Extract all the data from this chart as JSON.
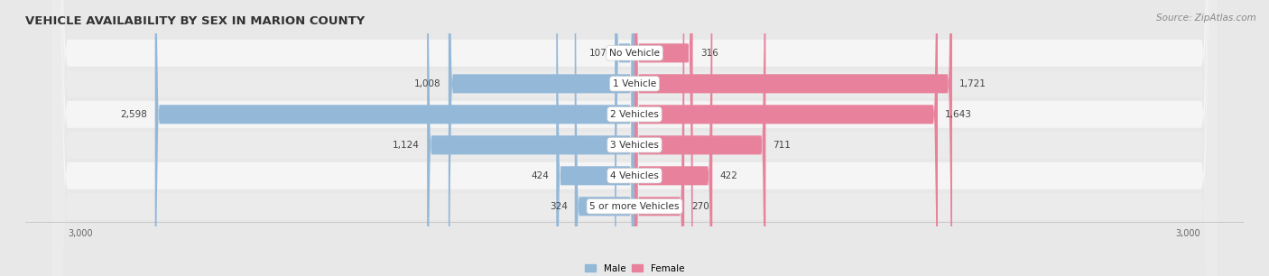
{
  "title": "VEHICLE AVAILABILITY BY SEX IN MARION COUNTY",
  "source": "Source: ZipAtlas.com",
  "categories": [
    "No Vehicle",
    "1 Vehicle",
    "2 Vehicles",
    "3 Vehicles",
    "4 Vehicles",
    "5 or more Vehicles"
  ],
  "male_values": [
    107,
    1008,
    2598,
    1124,
    424,
    324
  ],
  "female_values": [
    316,
    1721,
    1643,
    711,
    422,
    270
  ],
  "male_color": "#94b8d8",
  "female_color": "#e8829c",
  "male_label": "Male",
  "female_label": "Female",
  "xlim": 3000,
  "background_color": "#e8e8e8",
  "row_colors": [
    "#f5f5f5",
    "#ebebeb"
  ],
  "title_fontsize": 9.5,
  "label_fontsize": 8,
  "tick_fontsize": 8,
  "source_fontsize": 7.5
}
